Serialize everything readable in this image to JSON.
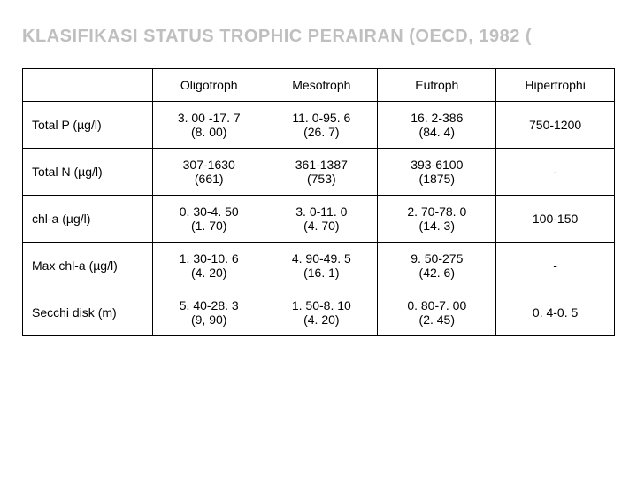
{
  "title": "KLASIFIKASI STATUS TROPHIC PERAIRAN (OECD, 1982 (",
  "table": {
    "columns": [
      "",
      "Oligotroph",
      "Mesotroph",
      "Eutroph",
      "Hipertrophi"
    ],
    "col_widths_pct": [
      22,
      19,
      19,
      20,
      20
    ],
    "rows": [
      {
        "label": "Total P (µg/l)",
        "cells": [
          {
            "main": "3. 00 -17. 7",
            "sub": "(8. 00)"
          },
          {
            "main": "11. 0-95. 6",
            "sub": "(26. 7)"
          },
          {
            "main": "16. 2-386",
            "sub": "(84. 4)"
          },
          {
            "main": "750-1200",
            "sub": ""
          }
        ]
      },
      {
        "label": "Total N (µg/l)",
        "cells": [
          {
            "main": "307-1630",
            "sub": "(661)"
          },
          {
            "main": "361-1387",
            "sub": "(753)"
          },
          {
            "main": "393-6100",
            "sub": "(1875)"
          },
          {
            "main": "-",
            "sub": ""
          }
        ]
      },
      {
        "label": "chl-a (µg/l)",
        "cells": [
          {
            "main": "0. 30-4. 50",
            "sub": "(1. 70)"
          },
          {
            "main": "3. 0-11. 0",
            "sub": "(4. 70)"
          },
          {
            "main": "2. 70-78. 0",
            "sub": "(14. 3)"
          },
          {
            "main": "100-150",
            "sub": ""
          }
        ]
      },
      {
        "label": "Max chl-a (µg/l)",
        "cells": [
          {
            "main": "1. 30-10. 6",
            "sub": "(4. 20)"
          },
          {
            "main": "4. 90-49. 5",
            "sub": "(16. 1)"
          },
          {
            "main": "9. 50-275",
            "sub": "(42. 6)"
          },
          {
            "main": "-",
            "sub": ""
          }
        ]
      },
      {
        "label": "Secchi disk (m)",
        "cells": [
          {
            "main": "5. 40-28. 3",
            "sub": "(9, 90)"
          },
          {
            "main": "1. 50-8. 10",
            "sub": "(4. 20)"
          },
          {
            "main": "0. 80-7. 00",
            "sub": "(2. 45)"
          },
          {
            "main": "0. 4-0. 5",
            "sub": ""
          }
        ]
      }
    ],
    "border_color": "#000000",
    "header_fontsize": 14,
    "cell_fontsize": 14,
    "background_color": "#ffffff"
  },
  "title_color": "#bfbfbf",
  "title_fontsize": 20,
  "page_background": "#000000",
  "slide_background": "#ffffff"
}
